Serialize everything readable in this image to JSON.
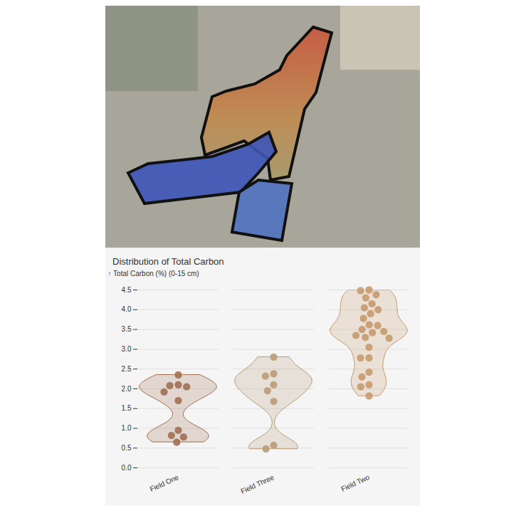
{
  "chart_data": {
    "type": "violin",
    "title": "Distribution of Total Carbon",
    "ylabel": "↑ Total Carbon (%) (0-15 cm)",
    "categories": [
      "Field One",
      "Field Three",
      "Field Two"
    ],
    "values": [
      [
        2.35,
        2.1,
        2.08,
        2.05,
        1.92,
        1.7,
        0.95,
        0.82,
        0.78,
        0.65
      ],
      [
        2.8,
        2.38,
        2.32,
        2.1,
        1.95,
        1.68,
        0.57,
        0.48
      ],
      [
        4.5,
        4.48,
        4.38,
        4.3,
        4.15,
        4.05,
        4.0,
        3.9,
        3.78,
        3.62,
        3.6,
        3.5,
        3.45,
        3.42,
        3.35,
        3.3,
        3.28,
        3.05,
        2.78,
        2.78,
        2.42,
        2.3,
        2.1,
        2.05,
        1.82
      ]
    ],
    "colors": [
      "#9c6a4c",
      "#b59870",
      "#c4976a"
    ],
    "ylim": [
      0,
      4.5
    ],
    "yticks": [
      {
        "value": 0,
        "label": "0.0"
      },
      {
        "value": 0.5,
        "label": "0.5"
      },
      {
        "value": 1,
        "label": "1.0"
      },
      {
        "value": 1.5,
        "label": "1.5"
      },
      {
        "value": 2,
        "label": "2.0"
      },
      {
        "value": 2.5,
        "label": "2.5"
      },
      {
        "value": 3,
        "label": "3.0"
      },
      {
        "value": 3.5,
        "label": "3.5"
      },
      {
        "value": 4,
        "label": "4.0"
      },
      {
        "value": 4.5,
        "label": "4.5"
      }
    ],
    "grid": true
  }
}
